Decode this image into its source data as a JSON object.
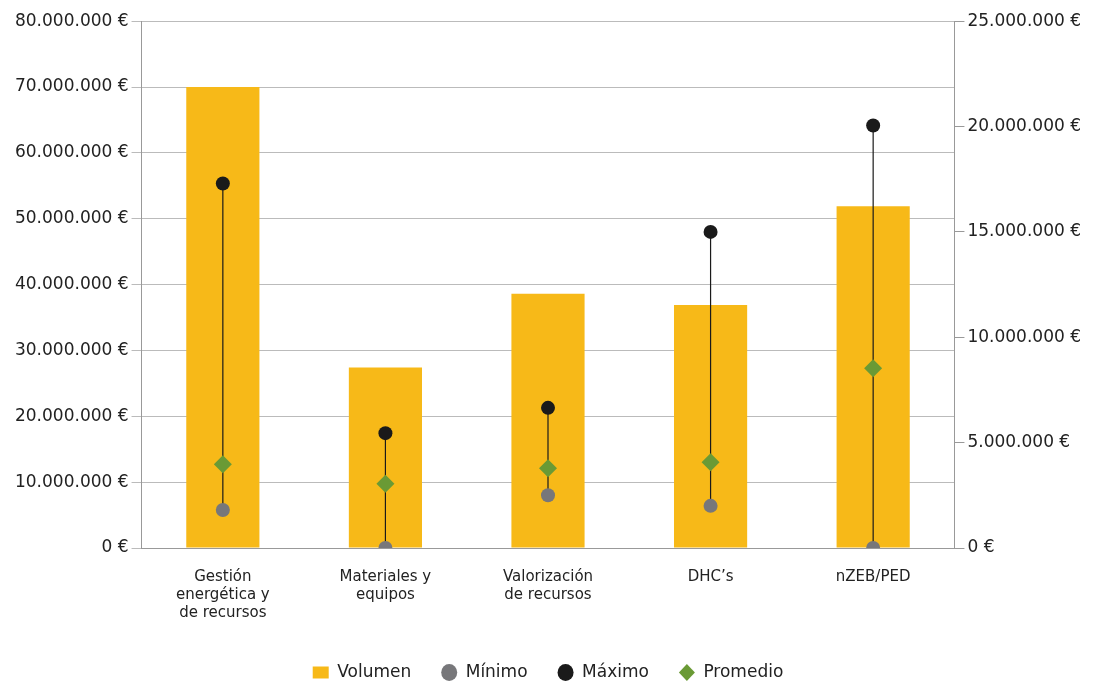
{
  "chart_data": {
    "type": "bar",
    "categories": [
      "Gestión energética y de recursos",
      "Materiales y equipos",
      "Valorización de recursos",
      "DHC’s",
      "nZEB/PED"
    ],
    "series": [
      {
        "name": "Volumen",
        "color": "#f7b918",
        "values": [
          70000000,
          27400000,
          38600000,
          36900000,
          51900000
        ]
      },
      {
        "name": "Mínimo",
        "type": "scatter",
        "axis": "y2",
        "marker": "circle",
        "color": "#77777a",
        "values": [
          1800000,
          0,
          2500000,
          2000000,
          0
        ]
      },
      {
        "name": "Máximo",
        "type": "scatter",
        "axis": "y2",
        "marker": "circle",
        "color": "#1a1a1a",
        "values": [
          17300000,
          5450000,
          6650000,
          15000000,
          20050000
        ]
      },
      {
        "name": "Promedio",
        "type": "scatter",
        "axis": "y2",
        "marker": "diamond",
        "color": "#6a9a35",
        "values": [
          3970000,
          3050000,
          3780000,
          4070000,
          8530000
        ]
      }
    ],
    "ylim": [
      0,
      80000000
    ],
    "yticks": [
      {
        "value": 0,
        "label": "0 €"
      },
      {
        "value": 10000000,
        "label": "10.000.000 €"
      },
      {
        "value": 20000000,
        "label": "20.000.000 €"
      },
      {
        "value": 30000000,
        "label": "30.000.000 €"
      },
      {
        "value": 40000000,
        "label": "40.000.000 €"
      },
      {
        "value": 50000000,
        "label": "50.000.000 €"
      },
      {
        "value": 60000000,
        "label": "60.000.000 €"
      },
      {
        "value": 70000000,
        "label": "70.000.000 €"
      },
      {
        "value": 80000000,
        "label": "80.000.000 €"
      }
    ],
    "y2lim": [
      0,
      25000000
    ],
    "y2ticks": [
      {
        "value": 0,
        "label": "0 €"
      },
      {
        "value": 5000000,
        "label": "5.000.000 €"
      },
      {
        "value": 10000000,
        "label": "10.000.000 €"
      },
      {
        "value": 15000000,
        "label": "15.000.000 €"
      },
      {
        "value": 20000000,
        "label": "20.000.000 €"
      },
      {
        "value": 25000000,
        "label": "25.000.000 €"
      }
    ],
    "grid": "y",
    "legend": "bottom"
  }
}
